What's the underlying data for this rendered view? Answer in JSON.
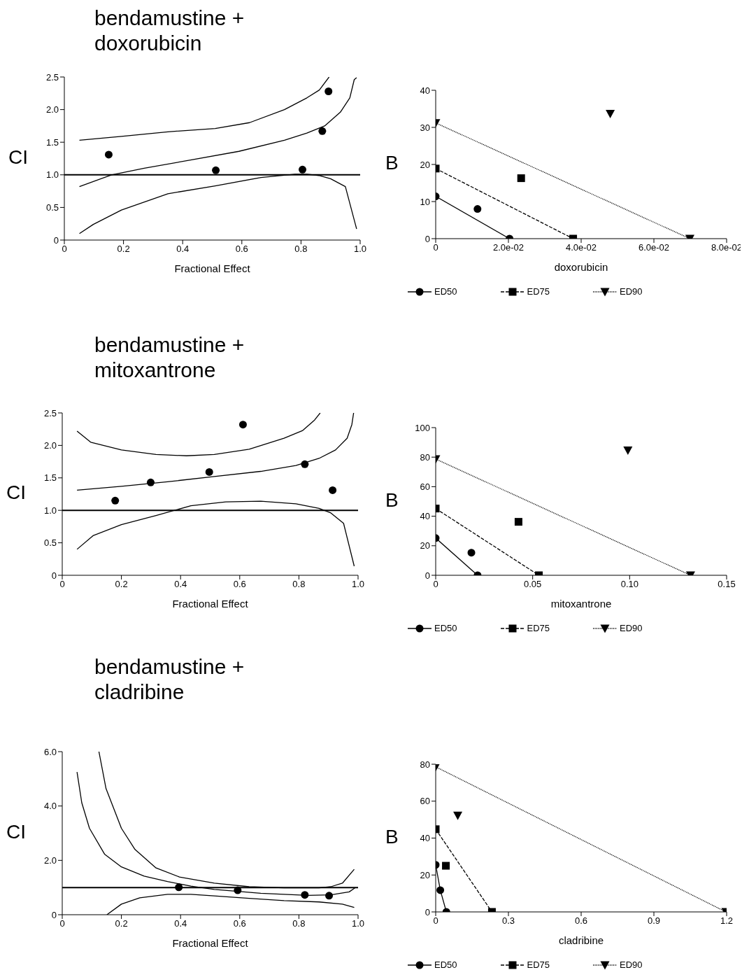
{
  "chart_data": [
    {
      "type": "line",
      "title": "bendamustine + doxorubicin",
      "xlabel": "Fractional Effect",
      "ylabel": "CI",
      "xlim": [
        0,
        1
      ],
      "ylim": [
        0,
        2.5
      ],
      "xticks": [
        0,
        0.2,
        0.4,
        0.6,
        0.8,
        {
          "value": 1,
          "label": "1.0"
        }
      ],
      "yticks": [
        0,
        0.5,
        {
          "value": 1,
          "label": "1.0"
        },
        1.5,
        {
          "value": 2,
          "label": "2.0"
        },
        2.5
      ],
      "ref_lines": [
        {
          "axis": "y",
          "value": 1
        }
      ],
      "series": [
        {
          "type": "scatter",
          "color": "#000000",
          "marker": "circle",
          "x": [
            0.15,
            0.512,
            0.805,
            0.872,
            0.893
          ],
          "values": [
            1.31,
            1.07,
            1.08,
            1.67,
            2.28
          ]
        },
        {
          "color": "#000000",
          "x": [
            0.051,
            0.16,
            0.27,
            0.43,
            0.59,
            0.744,
            0.82,
            0.88,
            0.933,
            0.965,
            0.98,
            0.988
          ],
          "values": [
            0.82,
            1.0,
            1.1,
            1.23,
            1.36,
            1.53,
            1.64,
            1.75,
            1.96,
            2.18,
            2.46,
            2.49
          ]
        },
        {
          "color": "#000000",
          "x": [
            0.051,
            0.193,
            0.35,
            0.51,
            0.626,
            0.744,
            0.82,
            0.862,
            0.895
          ],
          "values": [
            1.53,
            1.59,
            1.66,
            1.71,
            1.8,
            2.0,
            2.18,
            2.3,
            2.5
          ]
        },
        {
          "color": "#000000",
          "x": [
            0.051,
            0.098,
            0.193,
            0.35,
            0.51,
            0.665,
            0.78,
            0.82,
            0.86,
            0.9,
            0.95,
            0.988
          ],
          "values": [
            0.1,
            0.24,
            0.46,
            0.71,
            0.83,
            0.96,
            1.01,
            1.01,
            0.99,
            0.94,
            0.82,
            0.17
          ]
        }
      ]
    },
    {
      "type": "line",
      "xlabel": "doxorubicin",
      "ylabel": "B",
      "xlim": [
        0,
        0.08
      ],
      "ylim": [
        0,
        40
      ],
      "xticks": [
        0,
        {
          "value": 0.02,
          "label": "2.0e-02"
        },
        {
          "value": 0.04,
          "label": "4.0e-02"
        },
        {
          "value": 0.06,
          "label": "6.0e-02"
        },
        {
          "value": 0.08,
          "label": "8.0e-02"
        }
      ],
      "yticks": [
        0,
        10,
        20,
        30,
        40
      ],
      "legend": "bottom",
      "series": [
        {
          "name": "ED50",
          "color": "#000000",
          "marker": "circle",
          "line_style": "solid",
          "x": [
            0,
            0.0203
          ],
          "values": [
            11.4,
            0
          ]
        },
        {
          "name": "ED75",
          "color": "#000000",
          "marker": "square",
          "line_style": "dashed",
          "x": [
            0,
            0.0378
          ],
          "values": [
            18.9,
            0
          ]
        },
        {
          "name": "ED90",
          "color": "#000000",
          "marker": "triangle",
          "line_style": "dotted",
          "x": [
            0,
            0.0699
          ],
          "values": [
            31.2,
            0
          ]
        },
        {
          "type": "scatter",
          "color": "#000000",
          "marker": "circle",
          "x": [
            0.0115
          ],
          "values": [
            8.0
          ]
        },
        {
          "type": "scatter",
          "color": "#000000",
          "marker": "square",
          "x": [
            0.0235
          ],
          "values": [
            16.3
          ]
        },
        {
          "type": "scatter",
          "color": "#000000",
          "marker": "triangle",
          "x": [
            0.048
          ],
          "values": [
            33.7
          ]
        }
      ]
    },
    {
      "type": "line",
      "title": "bendamustine + mitoxantrone",
      "xlabel": "Fractional Effect",
      "ylabel": "CI",
      "xlim": [
        0,
        1
      ],
      "ylim": [
        0,
        2.5
      ],
      "xticks": [
        0,
        0.2,
        0.4,
        0.6,
        0.8,
        {
          "value": 1,
          "label": "1.0"
        }
      ],
      "yticks": [
        0,
        0.5,
        {
          "value": 1,
          "label": "1.0"
        },
        1.5,
        {
          "value": 2,
          "label": "2.0"
        },
        2.5
      ],
      "ref_lines": [
        {
          "axis": "y",
          "value": 1
        }
      ],
      "series": [
        {
          "type": "scatter",
          "color": "#000000",
          "marker": "circle",
          "x": [
            0.179,
            0.299,
            0.497,
            0.611,
            0.82,
            0.914
          ],
          "values": [
            1.15,
            1.43,
            1.59,
            2.32,
            1.71,
            1.31
          ]
        },
        {
          "color": "#000000",
          "x": [
            0.05,
            0.2,
            0.356,
            0.514,
            0.671,
            0.79,
            0.868,
            0.924,
            0.963,
            0.979,
            0.985
          ],
          "values": [
            1.31,
            1.37,
            1.44,
            1.52,
            1.6,
            1.69,
            1.8,
            1.93,
            2.11,
            2.32,
            2.5
          ]
        },
        {
          "color": "#000000",
          "x": [
            0.05,
            0.096,
            0.2,
            0.317,
            0.42,
            0.514,
            0.632,
            0.75,
            0.813,
            0.853,
            0.872
          ],
          "values": [
            2.22,
            2.05,
            1.93,
            1.86,
            1.84,
            1.86,
            1.94,
            2.11,
            2.23,
            2.39,
            2.5
          ]
        },
        {
          "color": "#000000",
          "x": [
            0.05,
            0.104,
            0.2,
            0.317,
            0.435,
            0.553,
            0.671,
            0.79,
            0.868,
            0.908,
            0.951,
            0.987
          ],
          "values": [
            0.4,
            0.61,
            0.78,
            0.92,
            1.07,
            1.13,
            1.14,
            1.1,
            1.03,
            0.96,
            0.8,
            0.14
          ]
        }
      ]
    },
    {
      "type": "line",
      "xlabel": "mitoxantrone",
      "ylabel": "B",
      "xlim": [
        0,
        0.15
      ],
      "ylim": [
        0,
        100
      ],
      "xticks": [
        0,
        0.05,
        {
          "value": 0.1,
          "label": "0.10"
        },
        0.15
      ],
      "yticks": [
        0,
        20,
        40,
        60,
        80,
        100
      ],
      "legend": "bottom",
      "series": [
        {
          "name": "ED50",
          "color": "#000000",
          "marker": "circle",
          "line_style": "solid",
          "x": [
            0,
            0.0216
          ],
          "values": [
            25.2,
            0
          ]
        },
        {
          "name": "ED75",
          "color": "#000000",
          "marker": "square",
          "line_style": "dashed",
          "x": [
            0,
            0.0532
          ],
          "values": [
            45.2,
            0
          ]
        },
        {
          "name": "ED90",
          "color": "#000000",
          "marker": "triangle",
          "line_style": "dotted",
          "x": [
            0,
            0.1314
          ],
          "values": [
            78.7,
            0
          ]
        },
        {
          "type": "scatter",
          "color": "#000000",
          "marker": "circle",
          "x": [
            0.0184
          ],
          "values": [
            15.3
          ]
        },
        {
          "type": "scatter",
          "color": "#000000",
          "marker": "square",
          "x": [
            0.0427
          ],
          "values": [
            36.2
          ]
        },
        {
          "type": "scatter",
          "color": "#000000",
          "marker": "triangle",
          "x": [
            0.0991
          ],
          "values": [
            84.6
          ]
        }
      ]
    },
    {
      "type": "line",
      "title": "bendamustine + cladribine",
      "xlabel": "Fractional Effect",
      "ylabel": "CI",
      "xlim": [
        0,
        1
      ],
      "ylim": [
        0,
        6
      ],
      "xticks": [
        0,
        0.2,
        0.4,
        0.6,
        0.8,
        {
          "value": 1,
          "label": "1.0"
        }
      ],
      "yticks": [
        0,
        {
          "value": 2,
          "label": "2.0"
        },
        {
          "value": 4,
          "label": "4.0"
        },
        {
          "value": 6,
          "label": "6.0"
        }
      ],
      "ref_lines": [
        {
          "axis": "y",
          "value": 1
        }
      ],
      "series": [
        {
          "type": "scatter",
          "color": "#000000",
          "marker": "circle",
          "x": [
            0.394,
            0.593,
            0.82,
            0.902
          ],
          "values": [
            1.01,
            0.9,
            0.73,
            0.7
          ]
        },
        {
          "color": "#000000",
          "x": [
            0.05,
            0.066,
            0.092,
            0.143,
            0.2,
            0.277,
            0.356,
            0.435,
            0.514,
            0.593,
            0.671,
            0.75,
            0.83,
            0.908,
            0.97,
            0.99
          ],
          "values": [
            5.25,
            4.12,
            3.18,
            2.23,
            1.76,
            1.42,
            1.22,
            1.05,
            0.93,
            0.86,
            0.79,
            0.75,
            0.71,
            0.73,
            0.84,
            0.99
          ]
        },
        {
          "color": "#000000",
          "x": [
            0.124,
            0.148,
            0.2,
            0.246,
            0.317,
            0.396,
            0.514,
            0.632,
            0.75,
            0.868,
            0.908,
            0.947,
            0.987
          ],
          "values": [
            6.0,
            4.64,
            3.18,
            2.4,
            1.72,
            1.39,
            1.16,
            1.03,
            0.99,
            0.99,
            1.03,
            1.16,
            1.67
          ]
        },
        {
          "color": "#000000",
          "x": [
            0.151,
            0.2,
            0.262,
            0.356,
            0.435,
            0.514,
            0.632,
            0.75,
            0.868,
            0.947,
            0.987
          ],
          "values": [
            0,
            0.39,
            0.62,
            0.75,
            0.75,
            0.69,
            0.6,
            0.52,
            0.47,
            0.39,
            0.27
          ]
        }
      ]
    },
    {
      "type": "line",
      "xlabel": "cladribine",
      "ylabel": "B",
      "xlim": [
        0,
        1.2
      ],
      "ylim": [
        0,
        80
      ],
      "xticks": [
        0,
        0.3,
        0.6,
        0.9,
        1.2
      ],
      "yticks": [
        0,
        20,
        40,
        60,
        80
      ],
      "legend": "bottom",
      "series": [
        {
          "name": "ED50",
          "color": "#000000",
          "marker": "circle",
          "line_style": "solid",
          "x": [
            0,
            0.019,
            0.044
          ],
          "values": [
            25.5,
            11.8,
            0
          ]
        },
        {
          "name": "ED75",
          "color": "#000000",
          "marker": "square",
          "line_style": "dashed",
          "x": [
            0,
            0.232
          ],
          "values": [
            44.8,
            0
          ]
        },
        {
          "name": "ED90",
          "color": "#000000",
          "marker": "triangle",
          "line_style": "dotted",
          "x": [
            0,
            1.197
          ],
          "values": [
            78.6,
            0
          ]
        },
        {
          "type": "scatter",
          "color": "#000000",
          "marker": "square",
          "x": [
            0.042
          ],
          "values": [
            25.0
          ]
        },
        {
          "type": "scatter",
          "color": "#000000",
          "marker": "triangle",
          "x": [
            0.091
          ],
          "values": [
            52.2
          ]
        }
      ]
    }
  ]
}
